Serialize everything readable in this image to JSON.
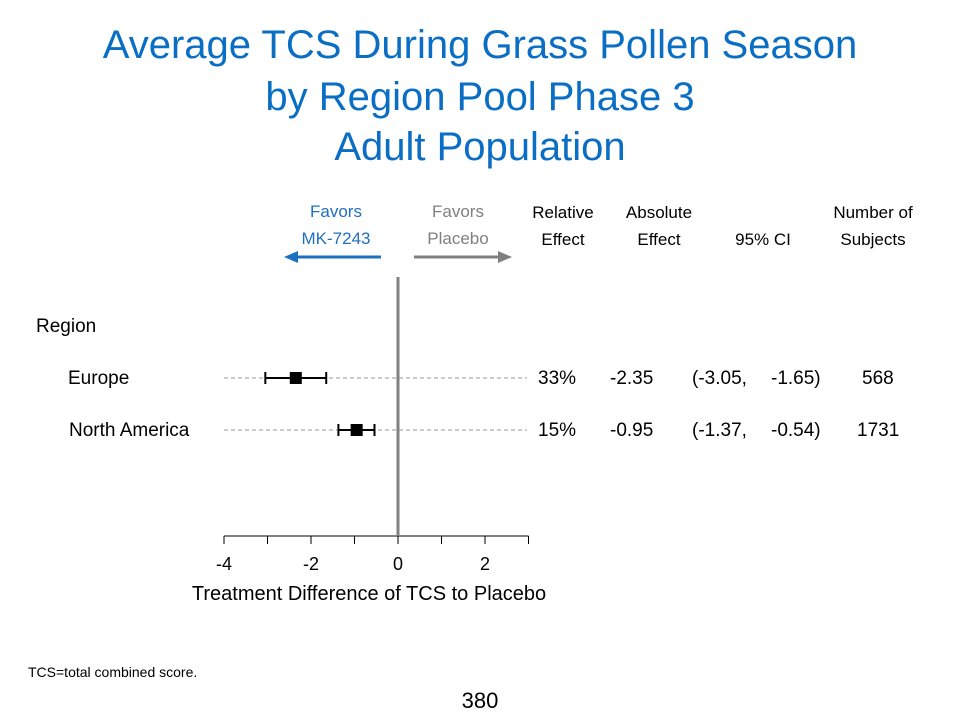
{
  "title": {
    "line1": "Average TCS During Grass Pollen Season",
    "line2": "by Region Pool Phase 3",
    "line3": "Adult Population"
  },
  "headers": {
    "favors_treatment": [
      "Favors",
      "MK-7243"
    ],
    "favors_placebo": [
      "Favors",
      "Placebo"
    ],
    "relative_effect": [
      "Relative",
      "Effect"
    ],
    "absolute_effect": [
      "Absolute",
      "Effect"
    ],
    "ci": "95% CI",
    "subjects": [
      "Number of",
      "Subjects"
    ]
  },
  "colors": {
    "title": "#0a6ec4",
    "favors_treatment": "#1f6fc1",
    "favors_placebo": "#808080",
    "reference_line": "#808080"
  },
  "chart_data": {
    "type": "forest",
    "group_label": "Region",
    "xlabel": "Treatment Difference of TCS to Placebo",
    "xlim": [
      -4,
      3
    ],
    "xticks": [
      -4,
      -2,
      0,
      2
    ],
    "reference_value": 0,
    "rows": [
      {
        "label": "Europe",
        "estimate": -2.35,
        "ci_low": -3.05,
        "ci_high": -1.65,
        "relative_effect": "33%",
        "absolute_effect": "-2.35",
        "ci_text_low": "(-3.05,",
        "ci_text_high": "-1.65)",
        "n": "568"
      },
      {
        "label": "North America",
        "estimate": -0.95,
        "ci_low": -1.37,
        "ci_high": -0.54,
        "relative_effect": "15%",
        "absolute_effect": "-0.95",
        "ci_text_low": "(-1.37,",
        "ci_text_high": "-0.54)",
        "n": "1731"
      }
    ]
  },
  "footnote": "TCS=total combined score.",
  "page_number": "380"
}
